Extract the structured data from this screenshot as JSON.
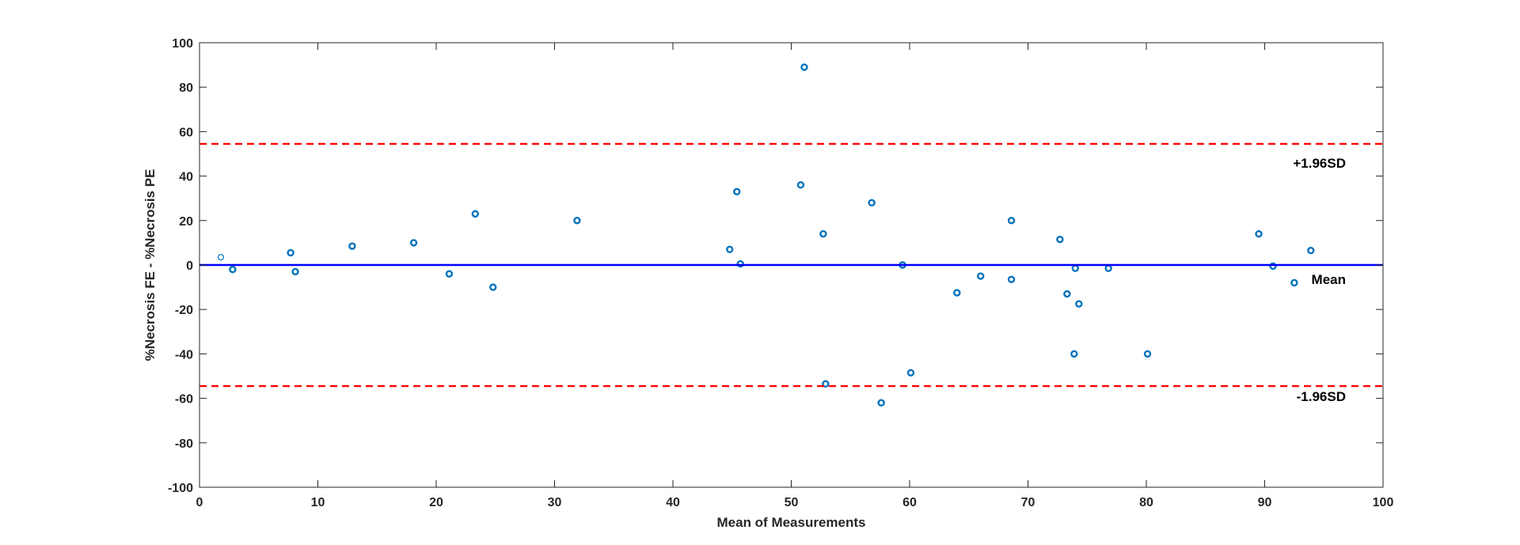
{
  "chart_data": {
    "type": "scatter",
    "title": "",
    "xlabel": "Mean of Measurements",
    "ylabel": "%Necrosis FE - %Necrosis PE",
    "xlim": [
      0,
      100
    ],
    "ylim": [
      -100,
      100
    ],
    "xticks": [
      0,
      10,
      20,
      30,
      40,
      50,
      60,
      70,
      80,
      90,
      100
    ],
    "yticks": [
      -100,
      -80,
      -60,
      -40,
      -20,
      0,
      20,
      40,
      60,
      80,
      100
    ],
    "grid": false,
    "series": [
      {
        "marker_color": "#0072BD",
        "points": [
          {
            "x": 1.8,
            "y": 3.5
          },
          {
            "x": 2.8,
            "y": -2
          },
          {
            "x": 7.7,
            "y": 5.5
          },
          {
            "x": 8.1,
            "y": -3
          },
          {
            "x": 12.9,
            "y": 8.5
          },
          {
            "x": 18.1,
            "y": 10
          },
          {
            "x": 21.1,
            "y": -4
          },
          {
            "x": 23.3,
            "y": 23
          },
          {
            "x": 24.8,
            "y": -10
          },
          {
            "x": 31.9,
            "y": 20
          },
          {
            "x": 44.8,
            "y": 7
          },
          {
            "x": 45.4,
            "y": 33
          },
          {
            "x": 45.7,
            "y": 0.5
          },
          {
            "x": 50.8,
            "y": 36
          },
          {
            "x": 51.1,
            "y": 89
          },
          {
            "x": 52.7,
            "y": 14
          },
          {
            "x": 52.9,
            "y": -53.5
          },
          {
            "x": 56.8,
            "y": 28
          },
          {
            "x": 57.6,
            "y": -62
          },
          {
            "x": 59.4,
            "y": 0
          },
          {
            "x": 60.1,
            "y": -48.5
          },
          {
            "x": 64.0,
            "y": -12.5
          },
          {
            "x": 66.0,
            "y": -5
          },
          {
            "x": 68.6,
            "y": 20
          },
          {
            "x": 68.6,
            "y": -6.5
          },
          {
            "x": 72.7,
            "y": 11.5
          },
          {
            "x": 73.3,
            "y": -13
          },
          {
            "x": 74.0,
            "y": -1.5
          },
          {
            "x": 73.9,
            "y": -40
          },
          {
            "x": 74.3,
            "y": -17.5
          },
          {
            "x": 76.8,
            "y": -1.5
          },
          {
            "x": 80.1,
            "y": -40
          },
          {
            "x": 89.5,
            "y": 14
          },
          {
            "x": 90.7,
            "y": -0.5
          },
          {
            "x": 92.5,
            "y": -8
          },
          {
            "x": 93.9,
            "y": 6.5
          }
        ]
      }
    ],
    "reference_lines": [
      {
        "label": "+1.96SD",
        "y": 54.5,
        "color": "#FF0000",
        "style": "dashed"
      },
      {
        "label": "Mean",
        "y": 0,
        "color": "#0000FF",
        "style": "solid"
      },
      {
        "label": "-1.96SD",
        "y": -54.5,
        "color": "#FF0000",
        "style": "dashed"
      }
    ]
  }
}
